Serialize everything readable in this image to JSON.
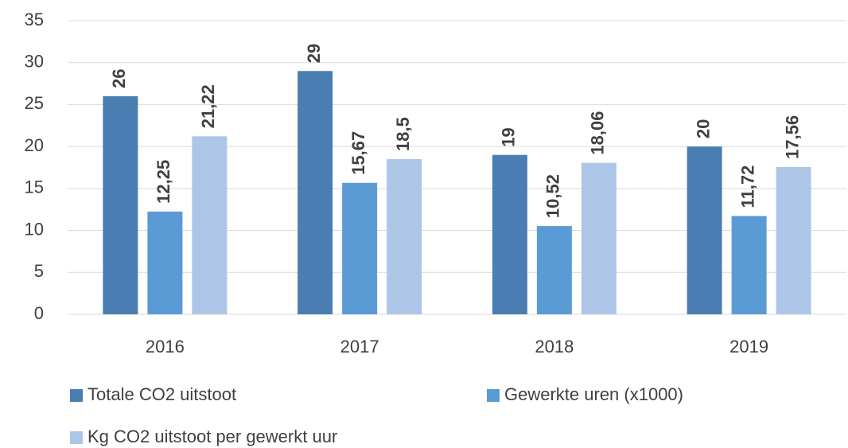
{
  "chart_data": {
    "type": "bar",
    "categories": [
      "2016",
      "2017",
      "2018",
      "2019"
    ],
    "series": [
      {
        "name": "Totale CO2 uitstoot",
        "color": "#4a7eb2",
        "values": [
          26,
          29,
          19,
          20
        ],
        "value_labels": [
          "26",
          "29",
          "19",
          "20"
        ]
      },
      {
        "name": "Gewerkte uren (x1000)",
        "color": "#5b9bd5",
        "values": [
          12.25,
          15.67,
          10.52,
          11.72
        ],
        "value_labels": [
          "12,25",
          "15,67",
          "10,52",
          "11,72"
        ]
      },
      {
        "name": "Kg CO2 uitstoot per gewerkt uur",
        "color": "#adc6e8",
        "values": [
          21.22,
          18.5,
          18.06,
          17.56
        ],
        "value_labels": [
          "21,22",
          "18,5",
          "18,06",
          "17,56"
        ]
      }
    ],
    "ylim": [
      0,
      35
    ],
    "yticks": [
      0,
      5,
      10,
      15,
      20,
      25,
      30,
      35
    ],
    "grid": true
  }
}
